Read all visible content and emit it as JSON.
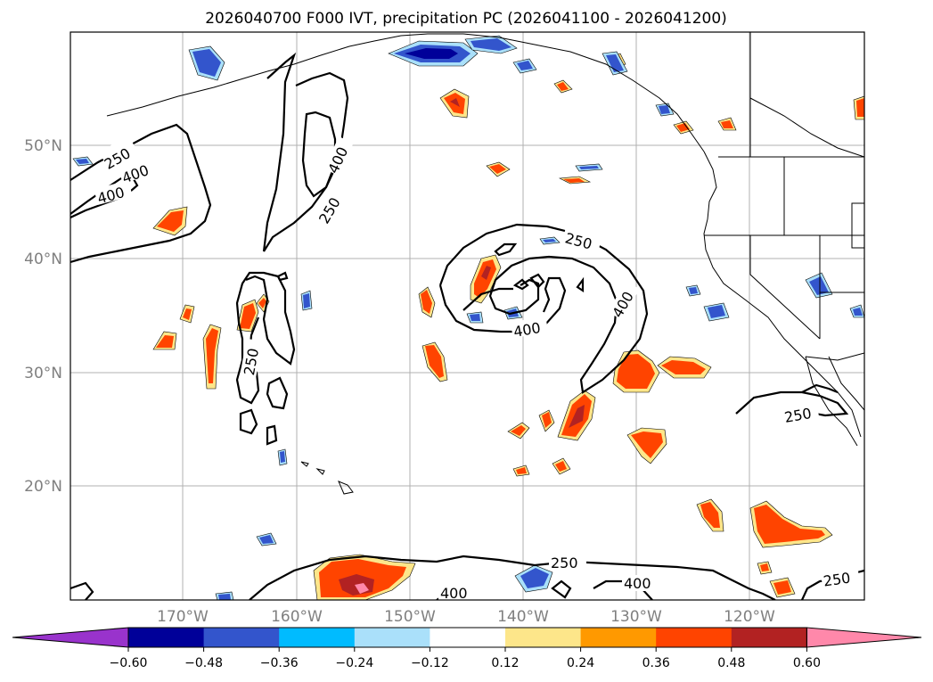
{
  "title": "2026040700 F000 IVT, precipitation PC (2026041100 - 2026041200)",
  "axes": {
    "lat_labels": [
      "50°N",
      "40°N",
      "30°N",
      "20°N"
    ],
    "lon_labels": [
      "170°W",
      "160°W",
      "150°W",
      "140°W",
      "130°W",
      "120°W"
    ]
  },
  "colorbar": {
    "ticks": [
      "−0.60",
      "−0.48",
      "−0.36",
      "−0.24",
      "−0.12",
      "0.12",
      "0.24",
      "0.36",
      "0.48",
      "0.60"
    ],
    "colors": [
      "#9933cc",
      "#000099",
      "#3355cc",
      "#00bbff",
      "#aae0fa",
      "#ffffff",
      "#fde68a",
      "#ff9900",
      "#ff4400",
      "#b22222",
      "#ff88aa"
    ],
    "extend": "both"
  },
  "contour_labels": {
    "l1": "250",
    "l2": "400",
    "l3": "400",
    "l4": "400",
    "l5": "250",
    "l6": "250",
    "l7": "400",
    "l8": "400",
    "l9": "250",
    "l10": "250",
    "l11": "250",
    "l12": "400",
    "l13": "400",
    "l14": "250"
  },
  "colors": {
    "yellow": "#fde68a",
    "orange": "#ff9900",
    "red_orange": "#ff4400",
    "dark_red": "#b22222",
    "pink": "#ff88aa",
    "light_blue": "#aae0fa",
    "cyan": "#00bbff",
    "blue": "#3355cc",
    "navy": "#000099"
  }
}
